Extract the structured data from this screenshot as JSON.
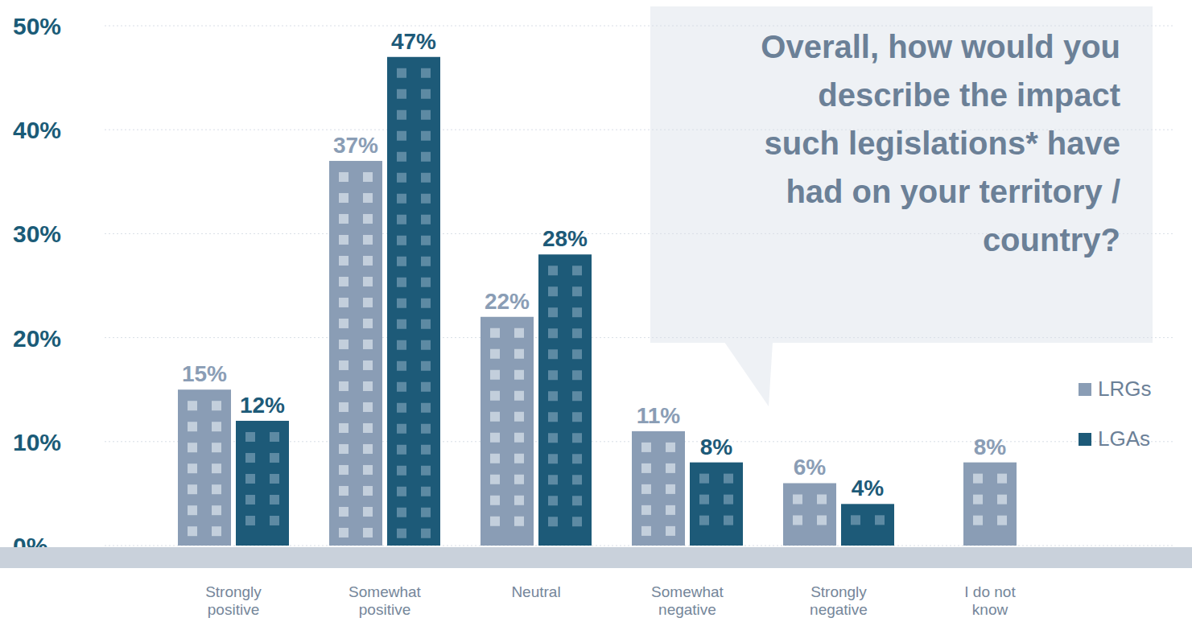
{
  "chart_data": {
    "type": "bar",
    "title": "Overall, how would you describe the impact such legislations* have had on your territory / country?",
    "categories": [
      "Strongly positive",
      "Somewhat positive",
      "Neutral",
      "Somewhat negative",
      "Strongly negative",
      "I do not know"
    ],
    "series": [
      {
        "name": "LRGs",
        "color": "#8a9db5",
        "values": [
          15,
          37,
          22,
          11,
          6,
          8
        ],
        "value_labels": [
          "15%",
          "37%",
          "22%",
          "11%",
          "6%",
          "8%"
        ]
      },
      {
        "name": "LGAs",
        "color": "#1d5a78",
        "values": [
          12,
          47,
          28,
          8,
          4,
          null
        ],
        "value_labels": [
          "12%",
          "47%",
          "28%",
          "8%",
          "4%",
          null
        ]
      }
    ],
    "ylim": [
      0,
      50
    ],
    "yticks": [
      {
        "value": 0,
        "label": "0%"
      },
      {
        "value": 10,
        "label": "10%"
      },
      {
        "value": 20,
        "label": "20%"
      },
      {
        "value": 30,
        "label": "30%"
      },
      {
        "value": 40,
        "label": "40%"
      },
      {
        "value": 50,
        "label": "50%"
      }
    ],
    "grid": true,
    "legend": "right",
    "data_labels": true
  }
}
